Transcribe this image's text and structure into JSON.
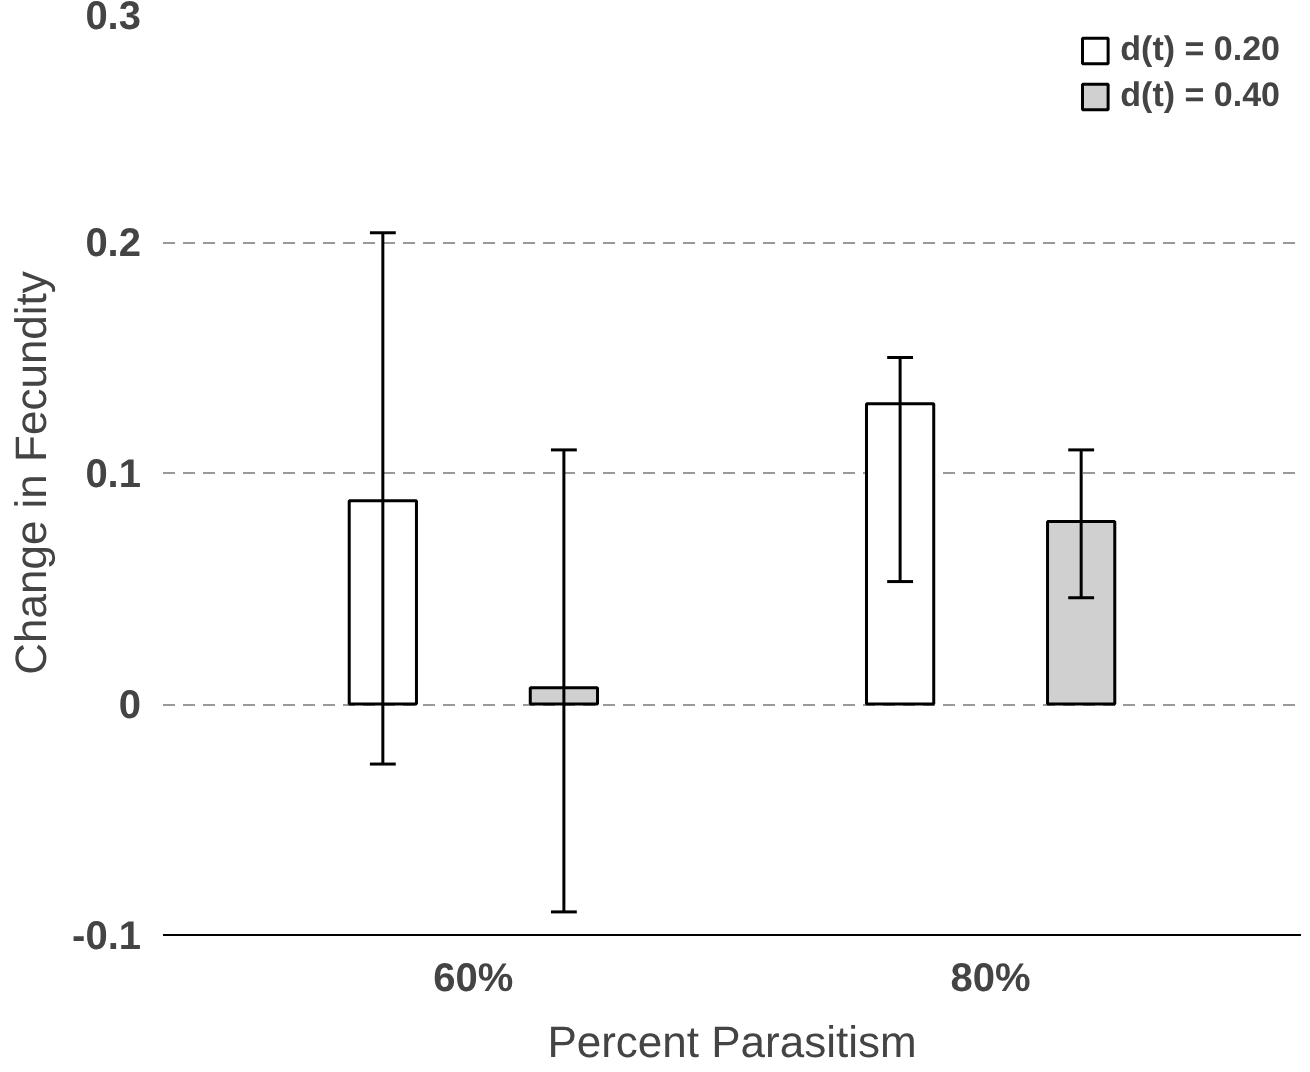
{
  "chart_data": {
    "type": "bar",
    "xlabel": "Percent Parasitism",
    "ylabel": "Change in Fecundity",
    "categories": [
      "60%",
      "80%"
    ],
    "series": [
      {
        "name": "d(t) = 0.20",
        "color": "#ffffff",
        "values": [
          0.088,
          0.13
        ],
        "errors": [
          [
            -0.026,
            0.204
          ],
          [
            0.053,
            0.15
          ]
        ]
      },
      {
        "name": "d(t) = 0.40",
        "color": "#d0d0d0",
        "values": [
          0.007,
          0.079
        ],
        "errors": [
          [
            -0.09,
            0.11
          ],
          [
            0.046,
            0.11
          ]
        ]
      }
    ],
    "ylim": [
      -0.1,
      0.3
    ],
    "yticks": [
      {
        "value": -0.1,
        "label": "-0.1"
      },
      {
        "value": 0,
        "label": "0"
      },
      {
        "value": 0.1,
        "label": "0.1"
      },
      {
        "value": 0.2,
        "label": "0.2"
      },
      {
        "value": 0.3,
        "label": "0.3"
      }
    ],
    "grid": "y",
    "legend": "top right"
  }
}
